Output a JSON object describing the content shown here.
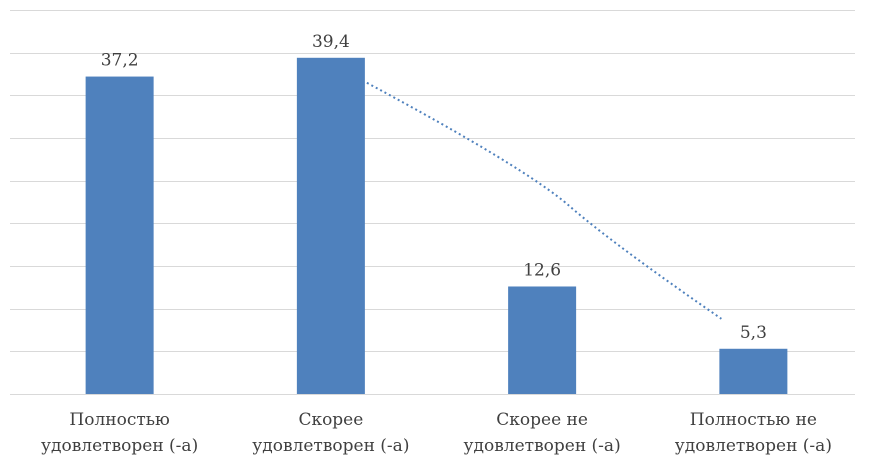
{
  "chart_data": {
    "type": "bar",
    "title": "",
    "xlabel": "",
    "ylabel": "",
    "categories": [
      [
        "Полностью",
        "удовлетворен (-а)"
      ],
      [
        "Скорее",
        "удовлетворен (-а)"
      ],
      [
        "Скорее не",
        "удовлетворен (-а)"
      ],
      [
        "Полностью не",
        "удовлетворен (-а)"
      ]
    ],
    "values": [
      37.2,
      39.4,
      12.6,
      5.3
    ],
    "value_labels": [
      "37,2",
      "39,4",
      "12,6",
      "5,3"
    ],
    "ylim": [
      0,
      45
    ],
    "grid": true,
    "y_axis_ticks_visible": false,
    "legend": "none",
    "trendline": {
      "style": "dotted",
      "from_category_index": 1,
      "to_category_index": 3
    },
    "colors": {
      "bar": "#4f81bd",
      "grid": "#d9d9d9",
      "text": "#404040",
      "trendline": "#4f81bd"
    }
  }
}
